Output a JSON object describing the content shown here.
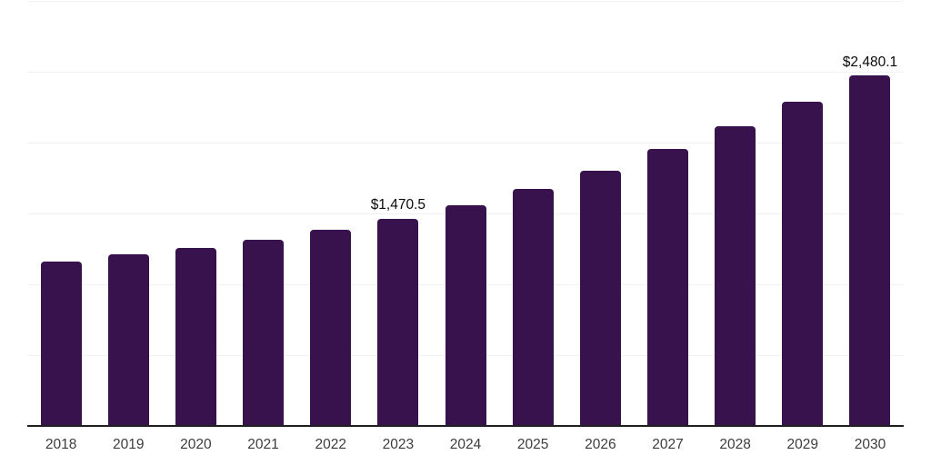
{
  "chart_data": {
    "type": "bar",
    "title": "",
    "xlabel": "",
    "ylabel": "",
    "categories": [
      "2018",
      "2019",
      "2020",
      "2021",
      "2022",
      "2023",
      "2024",
      "2025",
      "2026",
      "2027",
      "2028",
      "2029",
      "2030"
    ],
    "values": [
      1170,
      1218,
      1263,
      1320,
      1391,
      1470.5,
      1566,
      1680,
      1808,
      1962,
      2122,
      2298,
      2480.1
    ],
    "data_labels": {
      "2023": "$1,470.5",
      "2030": "$2,480.1"
    },
    "ylim": [
      0,
      3000
    ],
    "gridline_step": 500,
    "grid": "horizontal-faint",
    "legend": "none",
    "y_axis_tick_labels": "none",
    "colors": {
      "bar": "#37124D",
      "axis_line": "#1f1f1f",
      "gridline": "#f2f2f2",
      "tick_label": "#3d3d3d",
      "data_label": "#0a0a0a",
      "background": "#ffffff"
    }
  }
}
